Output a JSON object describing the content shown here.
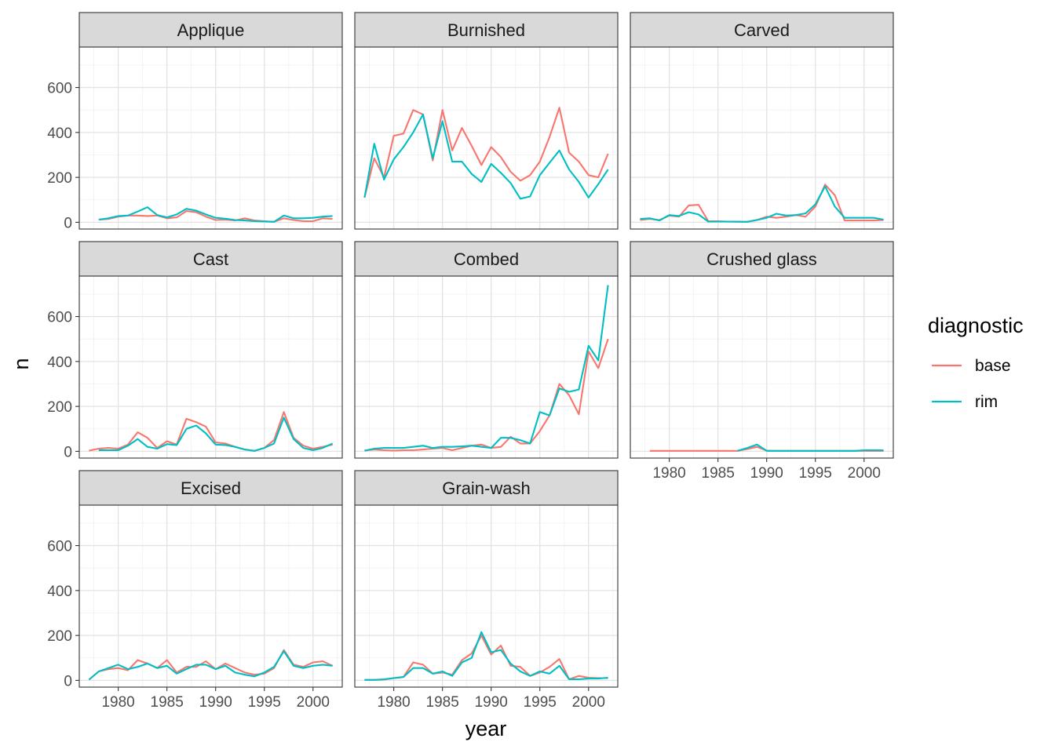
{
  "chart_data": {
    "type": "line",
    "facet_by": "technique",
    "x_label": "year",
    "y_label": "n",
    "xlim": [
      1976,
      2003
    ],
    "ylim": [
      -30,
      780
    ],
    "x_ticks": [
      1980,
      1985,
      1990,
      1995,
      2000
    ],
    "y_ticks": [
      0,
      200,
      400,
      600
    ],
    "x_tick_labels": [
      "1980",
      "1985",
      "1990",
      "1995",
      "2000"
    ],
    "y_tick_labels": [
      "0",
      "200",
      "400",
      "600"
    ],
    "grid": true,
    "legend": {
      "title": "diagnostic",
      "placement": "right",
      "entries": [
        {
          "label": "base",
          "color": "#F8766D"
        },
        {
          "label": "rim",
          "color": "#00BFC4"
        }
      ]
    },
    "panels": [
      {
        "label": "Applique",
        "series": [
          {
            "name": "base",
            "color": "#F8766D",
            "x": [
              1978,
              1979,
              1980,
              1981,
              1982,
              1983,
              1984,
              1985,
              1986,
              1987,
              1988,
              1989,
              1990,
              1991,
              1992,
              1993,
              1994,
              1995,
              1996,
              1997,
              1998,
              1999,
              2000,
              2001,
              2002
            ],
            "y": [
              12,
              15,
              25,
              30,
              30,
              28,
              30,
              18,
              22,
              50,
              45,
              25,
              10,
              12,
              8,
              18,
              8,
              5,
              2,
              18,
              10,
              5,
              5,
              18,
              15
            ]
          },
          {
            "name": "rim",
            "color": "#00BFC4",
            "x": [
              1978,
              1979,
              1980,
              1981,
              1982,
              1983,
              1984,
              1985,
              1986,
              1987,
              1988,
              1989,
              1990,
              1991,
              1992,
              1993,
              1994,
              1995,
              1996,
              1997,
              1998,
              1999,
              2000,
              2001,
              2002
            ],
            "y": [
              12,
              18,
              28,
              30,
              48,
              67,
              32,
              22,
              35,
              60,
              52,
              35,
              20,
              16,
              10,
              8,
              5,
              4,
              2,
              30,
              18,
              18,
              20,
              25,
              28
            ]
          }
        ]
      },
      {
        "label": "Burnished",
        "series": [
          {
            "name": "base",
            "color": "#F8766D",
            "x": [
              1977,
              1978,
              1979,
              1980,
              1981,
              1982,
              1983,
              1984,
              1985,
              1986,
              1987,
              1988,
              1989,
              1990,
              1991,
              1992,
              1993,
              1994,
              1995,
              1996,
              1997,
              1998,
              1999,
              2000,
              2001,
              2002
            ],
            "y": [
              110,
              285,
              200,
              385,
              395,
              500,
              480,
              275,
              500,
              320,
              420,
              340,
              255,
              335,
              290,
              225,
              185,
              210,
              270,
              380,
              510,
              310,
              270,
              210,
              200,
              305
            ]
          },
          {
            "name": "rim",
            "color": "#00BFC4",
            "x": [
              1977,
              1978,
              1979,
              1980,
              1981,
              1982,
              1983,
              1984,
              1985,
              1986,
              1987,
              1988,
              1989,
              1990,
              1991,
              1992,
              1993,
              1994,
              1995,
              1996,
              1997,
              1998,
              1999,
              2000,
              2001,
              2002
            ],
            "y": [
              110,
              350,
              190,
              280,
              335,
              400,
              480,
              285,
              450,
              270,
              270,
              215,
              180,
              260,
              220,
              175,
              105,
              115,
              210,
              265,
              320,
              235,
              180,
              110,
              170,
              235
            ]
          }
        ]
      },
      {
        "label": "Carved",
        "series": [
          {
            "name": "base",
            "color": "#F8766D",
            "x": [
              1977,
              1978,
              1979,
              1980,
              1981,
              1982,
              1983,
              1984,
              1985,
              1986,
              1987,
              1988,
              1989,
              1990,
              1991,
              1992,
              1993,
              1994,
              1995,
              1996,
              1997,
              1998,
              1999,
              2000,
              2001,
              2002
            ],
            "y": [
              10,
              15,
              10,
              30,
              25,
              75,
              78,
              5,
              5,
              3,
              2,
              2,
              10,
              25,
              20,
              25,
              32,
              25,
              70,
              168,
              120,
              8,
              8,
              8,
              8,
              10
            ]
          },
          {
            "name": "rim",
            "color": "#00BFC4",
            "x": [
              1977,
              1978,
              1979,
              1980,
              1981,
              1982,
              1983,
              1984,
              1985,
              1986,
              1987,
              1988,
              1989,
              1990,
              1991,
              1992,
              1993,
              1994,
              1995,
              1996,
              1997,
              1998,
              1999,
              2000,
              2001,
              2002
            ],
            "y": [
              15,
              18,
              8,
              32,
              28,
              45,
              35,
              3,
              3,
              3,
              3,
              2,
              10,
              20,
              38,
              30,
              32,
              40,
              80,
              160,
              70,
              20,
              20,
              20,
              20,
              12
            ]
          }
        ]
      },
      {
        "label": "Cast",
        "series": [
          {
            "name": "base",
            "color": "#F8766D",
            "x": [
              1977,
              1978,
              1979,
              1980,
              1981,
              1982,
              1983,
              1984,
              1985,
              1986,
              1987,
              1988,
              1989,
              1990,
              1991,
              1992,
              1993,
              1994,
              1995,
              1996,
              1997,
              1998,
              1999,
              2000,
              2001,
              2002
            ],
            "y": [
              3,
              12,
              15,
              12,
              30,
              85,
              60,
              15,
              45,
              30,
              145,
              130,
              110,
              40,
              35,
              20,
              8,
              2,
              15,
              50,
              175,
              60,
              25,
              12,
              20,
              30
            ]
          },
          {
            "name": "rim",
            "color": "#00BFC4",
            "x": [
              1978,
              1979,
              1980,
              1981,
              1982,
              1983,
              1984,
              1985,
              1986,
              1987,
              1988,
              1989,
              1990,
              1991,
              1992,
              1993,
              1994,
              1995,
              1996,
              1997,
              1998,
              1999,
              2000,
              2001,
              2002
            ],
            "y": [
              5,
              5,
              5,
              25,
              55,
              20,
              12,
              32,
              28,
              100,
              115,
              80,
              30,
              28,
              20,
              8,
              2,
              15,
              35,
              150,
              55,
              15,
              5,
              15,
              35
            ]
          }
        ]
      },
      {
        "label": "Combed",
        "series": [
          {
            "name": "base",
            "color": "#F8766D",
            "x": [
              1977,
              1978,
              1979,
              1980,
              1981,
              1982,
              1983,
              1984,
              1985,
              1986,
              1987,
              1988,
              1989,
              1990,
              1991,
              1992,
              1993,
              1994,
              1995,
              1996,
              1997,
              1998,
              1999,
              2000,
              2001,
              2002
            ],
            "y": [
              3,
              8,
              5,
              3,
              5,
              5,
              8,
              12,
              15,
              5,
              15,
              25,
              30,
              15,
              20,
              65,
              35,
              35,
              90,
              160,
              300,
              250,
              165,
              445,
              370,
              500
            ]
          },
          {
            "name": "rim",
            "color": "#00BFC4",
            "x": [
              1977,
              1978,
              1979,
              1980,
              1981,
              1982,
              1983,
              1984,
              1985,
              1986,
              1987,
              1988,
              1989,
              1990,
              1991,
              1992,
              1993,
              1994,
              1995,
              1996,
              1997,
              1998,
              1999,
              2000,
              2001,
              2002
            ],
            "y": [
              3,
              12,
              15,
              15,
              15,
              20,
              25,
              15,
              20,
              20,
              22,
              25,
              20,
              15,
              60,
              60,
              50,
              35,
              175,
              160,
              280,
              265,
              275,
              470,
              405,
              740
            ]
          }
        ]
      },
      {
        "label": "Crushed glass",
        "series": [
          {
            "name": "base",
            "color": "#F8766D",
            "x": [
              1978,
              1979,
              1980,
              1981,
              1982,
              1983,
              1984,
              1985,
              1986,
              1987,
              1988,
              1989,
              1990,
              1991,
              1992,
              1993,
              1994,
              1995,
              1996,
              1997,
              1998,
              1999,
              2000,
              2001,
              2002
            ],
            "y": [
              2,
              2,
              2,
              2,
              2,
              2,
              2,
              2,
              2,
              2,
              10,
              20,
              3,
              2,
              2,
              2,
              2,
              2,
              2,
              2,
              2,
              2,
              2,
              2,
              2
            ]
          },
          {
            "name": "rim",
            "color": "#00BFC4",
            "x": [
              1987,
              1988,
              1989,
              1990,
              1991,
              1992,
              1993,
              1994,
              1995,
              1996,
              1997,
              1998,
              1999,
              2000,
              2001,
              2002
            ],
            "y": [
              2,
              15,
              30,
              2,
              2,
              2,
              2,
              2,
              2,
              2,
              2,
              2,
              2,
              5,
              5,
              5
            ]
          }
        ]
      },
      {
        "label": "Excised",
        "series": [
          {
            "name": "base",
            "color": "#F8766D",
            "x": [
              1977,
              1978,
              1979,
              1980,
              1981,
              1982,
              1983,
              1984,
              1985,
              1986,
              1987,
              1988,
              1989,
              1990,
              1991,
              1992,
              1993,
              1994,
              1995,
              1996,
              1997,
              1998,
              1999,
              2000,
              2001,
              2002
            ],
            "y": [
              3,
              40,
              50,
              55,
              45,
              90,
              75,
              55,
              90,
              35,
              60,
              60,
              85,
              50,
              75,
              55,
              35,
              25,
              30,
              55,
              135,
              70,
              60,
              80,
              85,
              65
            ]
          },
          {
            "name": "rim",
            "color": "#00BFC4",
            "x": [
              1977,
              1978,
              1979,
              1980,
              1981,
              1982,
              1983,
              1984,
              1985,
              1986,
              1987,
              1988,
              1989,
              1990,
              1991,
              1992,
              1993,
              1994,
              1995,
              1996,
              1997,
              1998,
              1999,
              2000,
              2001,
              2002
            ],
            "y": [
              3,
              40,
              55,
              70,
              50,
              60,
              75,
              55,
              65,
              30,
              50,
              70,
              70,
              50,
              65,
              35,
              25,
              18,
              35,
              60,
              130,
              65,
              55,
              65,
              70,
              65
            ]
          }
        ]
      },
      {
        "label": "Grain-wash",
        "series": [
          {
            "name": "base",
            "color": "#F8766D",
            "x": [
              1977,
              1978,
              1979,
              1980,
              1981,
              1982,
              1983,
              1984,
              1985,
              1986,
              1987,
              1988,
              1989,
              1990,
              1991,
              1992,
              1993,
              1994,
              1995,
              1996,
              1997,
              1998,
              1999,
              2000,
              2001,
              2002
            ],
            "y": [
              2,
              2,
              3,
              10,
              15,
              80,
              70,
              30,
              35,
              25,
              90,
              120,
              200,
              115,
              155,
              65,
              60,
              20,
              35,
              60,
              95,
              5,
              20,
              12,
              10,
              10
            ]
          },
          {
            "name": "rim",
            "color": "#00BFC4",
            "x": [
              1977,
              1978,
              1979,
              1980,
              1981,
              1982,
              1983,
              1984,
              1985,
              1986,
              1987,
              1988,
              1989,
              1990,
              1991,
              1992,
              1993,
              1994,
              1995,
              1996,
              1997,
              1998,
              1999,
              2000,
              2001,
              2002
            ],
            "y": [
              2,
              2,
              5,
              10,
              15,
              55,
              55,
              30,
              40,
              20,
              80,
              100,
              215,
              125,
              135,
              75,
              40,
              20,
              40,
              30,
              65,
              5,
              5,
              8,
              8,
              12
            ]
          }
        ]
      }
    ]
  }
}
